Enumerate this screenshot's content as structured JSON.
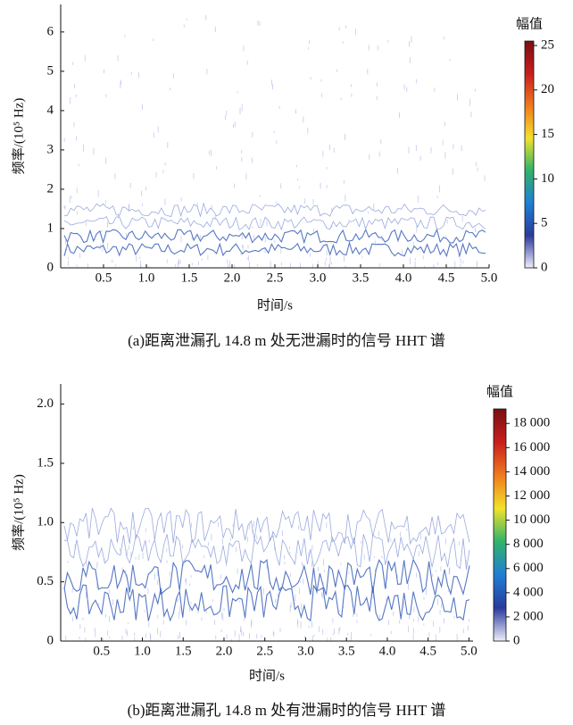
{
  "chart_data": [
    {
      "type": "spectrogram",
      "xlabel": "时间/s",
      "ylabel": "频率/(10⁵ Hz)",
      "caption": "(a)距离泄漏孔 14.8 m 处无泄漏时的信号 HHT 谱",
      "colorbar_title": "幅值",
      "xlim": [
        0,
        5.0
      ],
      "ylim": [
        0,
        6.7
      ],
      "xticks": [
        0.5,
        {
          "value": 1,
          "label": "1.0"
        },
        1.5,
        {
          "value": 2,
          "label": "2.0"
        },
        2.5,
        {
          "value": 3,
          "label": "3.0"
        },
        3.5,
        {
          "value": 4,
          "label": "4.0"
        },
        4.5,
        {
          "value": 5,
          "label": "5.0"
        }
      ],
      "yticks": [
        0,
        1,
        2,
        3,
        4,
        5,
        6
      ],
      "clim": [
        0,
        25.5
      ],
      "cticks": [
        0,
        5,
        10,
        15,
        20,
        25
      ],
      "colormap": [
        "#eeeefa",
        "#2a3a9c",
        "#1f7fd6",
        "#2fb36a",
        "#f2e22a",
        "#f07a1e",
        "#c81e1e",
        "#7a0f0f"
      ]
    },
    {
      "type": "spectrogram",
      "xlabel": "时间/s",
      "ylabel": "频率/(10⁵ Hz)",
      "caption": "(b)距离泄漏孔 14.8 m 处有泄漏时的信号 HHT 谱",
      "colorbar_title": "幅值",
      "xlim": [
        0,
        5.05
      ],
      "ylim": [
        0,
        2.17
      ],
      "xticks": [
        0.5,
        {
          "value": 1,
          "label": "1.0"
        },
        1.5,
        {
          "value": 2,
          "label": "2.0"
        },
        2.5,
        {
          "value": 3,
          "label": "3.0"
        },
        3.5,
        {
          "value": 4,
          "label": "4.0"
        },
        4.5,
        {
          "value": 5,
          "label": "5.0"
        }
      ],
      "yticks": [
        0,
        0.5,
        {
          "value": 1,
          "label": "1.0"
        },
        1.5,
        {
          "value": 2,
          "label": "2.0"
        }
      ],
      "clim": [
        0,
        19200
      ],
      "cticks": [
        0,
        {
          "value": 2000,
          "label": "2 000"
        },
        {
          "value": 4000,
          "label": "4 000"
        },
        {
          "value": 6000,
          "label": "6 000"
        },
        {
          "value": 8000,
          "label": "8 000"
        },
        {
          "value": 10000,
          "label": "10 000"
        },
        {
          "value": 12000,
          "label": "12 000"
        },
        {
          "value": 14000,
          "label": "14 000"
        },
        {
          "value": 16000,
          "label": "16 000"
        },
        {
          "value": 18000,
          "label": "18 000"
        }
      ],
      "colormap": [
        "#eeeefa",
        "#2a3a9c",
        "#1f7fd6",
        "#2fb36a",
        "#f2e22a",
        "#f07a1e",
        "#c81e1e",
        "#7a0f0f"
      ]
    }
  ]
}
